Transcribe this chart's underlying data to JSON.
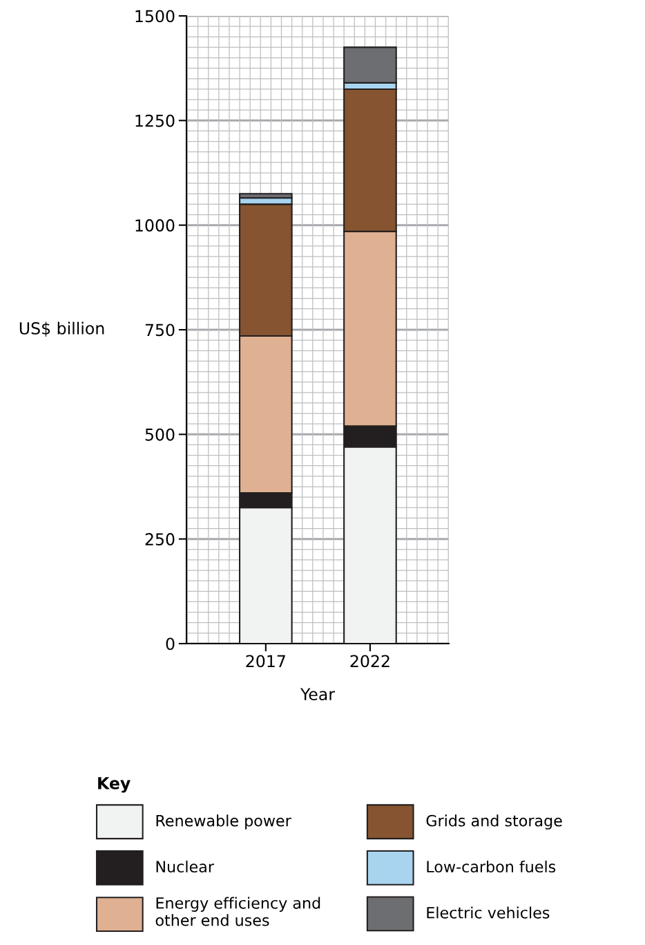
{
  "chart_data": {
    "type": "bar",
    "stacked": true,
    "xlabel": "Year",
    "ylabel": "US$ billion",
    "legend_title": "Key",
    "legend": "bottom",
    "categories": [
      "2017",
      "2022"
    ],
    "series": [
      {
        "name": "Renewable power",
        "color": "#f1f2f2",
        "values": [
          325,
          470
        ]
      },
      {
        "name": "Nuclear",
        "color": "#231f20",
        "values": [
          35,
          50
        ]
      },
      {
        "name": "Energy efficiency and\nother end uses",
        "color": "#dfb192",
        "values": [
          375,
          465
        ]
      },
      {
        "name": "Grids and storage",
        "color": "#865430",
        "values": [
          315,
          340
        ]
      },
      {
        "name": "Low-carbon fuels",
        "color": "#a8d4ef",
        "values": [
          15,
          15
        ]
      },
      {
        "name": "Electric vehicles",
        "color": "#6d6e71",
        "values": [
          10,
          85
        ]
      }
    ],
    "ylim": [
      0,
      1500
    ],
    "yticks": [
      0,
      250,
      500,
      750,
      1000,
      1250,
      1500
    ],
    "grid": true
  }
}
